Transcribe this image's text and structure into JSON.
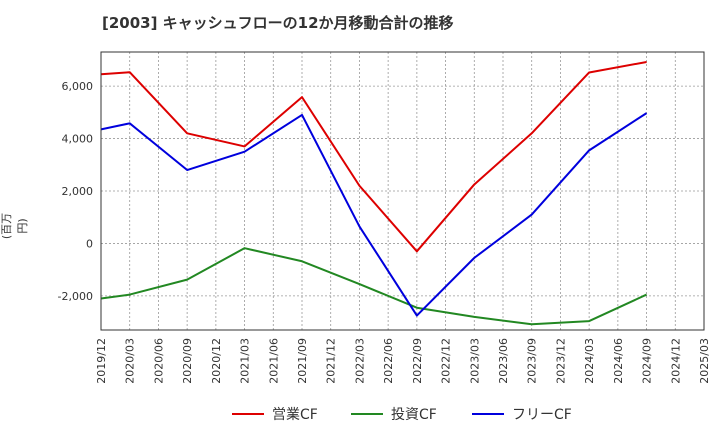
{
  "chart_data": {
    "type": "line",
    "title": "[2003]  キャッシュフローの12か月移動合計の推移",
    "ylabel": "(百万円)",
    "xlabel": "",
    "ylim": [
      -3300,
      7300
    ],
    "y_ticks": [
      -2000,
      0,
      2000,
      4000,
      6000
    ],
    "y_tick_labels": [
      "-2,000",
      "0",
      "2,000",
      "4,000",
      "6,000"
    ],
    "x_tick_labels": [
      "2019/12",
      "2020/03",
      "2020/06",
      "2020/09",
      "2020/12",
      "2021/03",
      "2021/06",
      "2021/09",
      "2021/12",
      "2022/03",
      "2022/06",
      "2022/09",
      "2022/12",
      "2023/03",
      "2023/06",
      "2023/09",
      "2023/12",
      "2024/03",
      "2024/06",
      "2024/09",
      "2024/12",
      "2025/03"
    ],
    "grid": true,
    "legend_position": "bottom",
    "series": [
      {
        "name": "営業CF",
        "color": "#dd0000",
        "points": [
          {
            "x": 0,
            "y": 6450
          },
          {
            "x": 1,
            "y": 6530
          },
          {
            "x": 3,
            "y": 4200
          },
          {
            "x": 5,
            "y": 3700
          },
          {
            "x": 7,
            "y": 5580
          },
          {
            "x": 9,
            "y": 2200
          },
          {
            "x": 11,
            "y": -300
          },
          {
            "x": 13,
            "y": 2250
          },
          {
            "x": 15,
            "y": 4200
          },
          {
            "x": 17,
            "y": 6520
          },
          {
            "x": 19,
            "y": 6920
          }
        ]
      },
      {
        "name": "投資CF",
        "color": "#228822",
        "points": [
          {
            "x": 0,
            "y": -2100
          },
          {
            "x": 1,
            "y": -1950
          },
          {
            "x": 3,
            "y": -1380
          },
          {
            "x": 5,
            "y": -180
          },
          {
            "x": 7,
            "y": -680
          },
          {
            "x": 9,
            "y": -1550
          },
          {
            "x": 11,
            "y": -2450
          },
          {
            "x": 13,
            "y": -2800
          },
          {
            "x": 15,
            "y": -3080
          },
          {
            "x": 17,
            "y": -2960
          },
          {
            "x": 19,
            "y": -1950
          }
        ]
      },
      {
        "name": "フリーCF",
        "color": "#0000dd",
        "points": [
          {
            "x": 0,
            "y": 4350
          },
          {
            "x": 1,
            "y": 4580
          },
          {
            "x": 3,
            "y": 2800
          },
          {
            "x": 5,
            "y": 3500
          },
          {
            "x": 7,
            "y": 4900
          },
          {
            "x": 9,
            "y": 650
          },
          {
            "x": 11,
            "y": -2750
          },
          {
            "x": 13,
            "y": -550
          },
          {
            "x": 15,
            "y": 1100
          },
          {
            "x": 17,
            "y": 3550
          },
          {
            "x": 19,
            "y": 4970
          }
        ]
      }
    ]
  }
}
